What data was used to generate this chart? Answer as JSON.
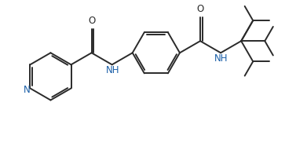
{
  "bg_color": "#ffffff",
  "line_color": "#2a2a2a",
  "N_color": "#1a5fa8",
  "lw": 1.4,
  "figsize": [
    3.91,
    1.91
  ],
  "dpi": 100,
  "xlim": [
    -0.5,
    10.5
  ],
  "ylim": [
    -0.3,
    4.8
  ]
}
